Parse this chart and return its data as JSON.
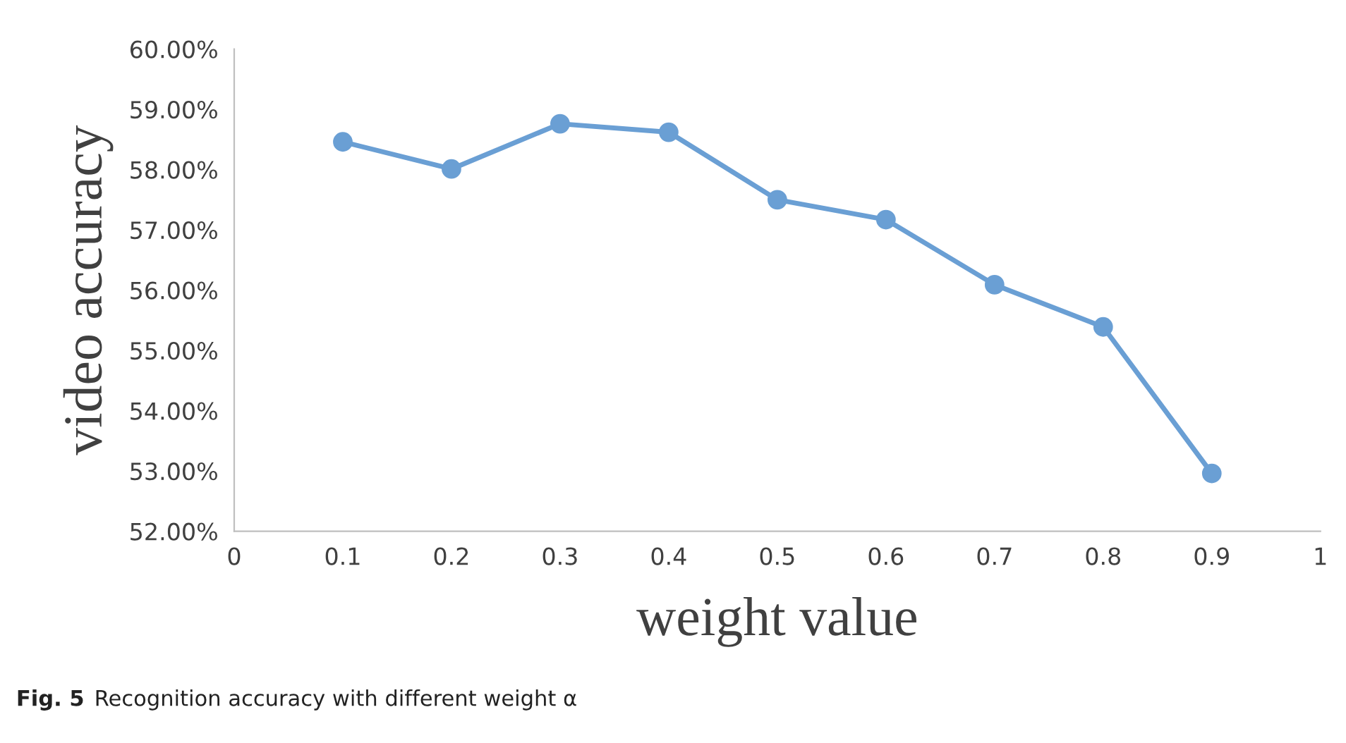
{
  "chart_data": {
    "type": "line",
    "xlabel": "weight value",
    "ylabel": "video accuracy",
    "x": [
      0.1,
      0.2,
      0.3,
      0.4,
      0.5,
      0.6,
      0.7,
      0.8,
      0.9
    ],
    "series": [
      {
        "color": "#6a9fd4",
        "values": [
          58.46,
          58.01,
          58.76,
          58.62,
          57.5,
          57.17,
          56.09,
          55.39,
          52.96
        ]
      }
    ],
    "xlim": [
      0,
      1
    ],
    "xticks": [
      0,
      0.1,
      0.2,
      0.3,
      0.4,
      0.5,
      0.6,
      0.7,
      0.8,
      0.9,
      1
    ],
    "ylim": [
      52,
      60
    ],
    "yticks": [
      {
        "value": 52,
        "label": "52.00%"
      },
      {
        "value": 53,
        "label": "53.00%"
      },
      {
        "value": 54,
        "label": "54.00%"
      },
      {
        "value": 55,
        "label": "55.00%"
      },
      {
        "value": 56,
        "label": "56.00%"
      },
      {
        "value": 57,
        "label": "57.00%"
      },
      {
        "value": 58,
        "label": "58.00%"
      },
      {
        "value": 59,
        "label": "59.00%"
      },
      {
        "value": 60,
        "label": "60.00%"
      }
    ],
    "grid": false,
    "legend": false,
    "marker": "circle",
    "line_style": "solid",
    "annotations": [
      "Fig. 5",
      "Recognition accuracy with different weight α"
    ]
  }
}
